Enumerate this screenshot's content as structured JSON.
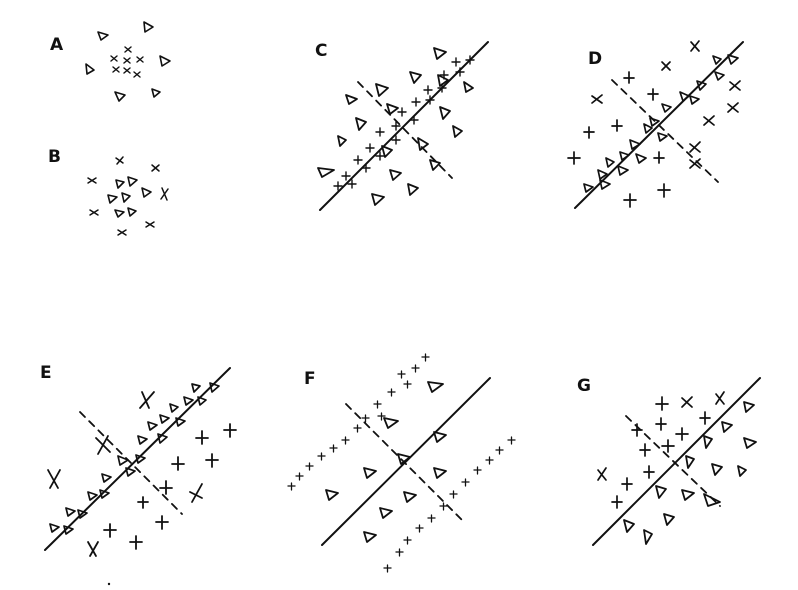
{
  "figure": {
    "panels": [
      {
        "id": "A",
        "label": "A"
      },
      {
        "id": "B",
        "label": "B"
      },
      {
        "id": "C",
        "label": "C"
      },
      {
        "id": "D",
        "label": "D"
      },
      {
        "id": "E",
        "label": "E"
      },
      {
        "id": "F",
        "label": "F"
      },
      {
        "id": "G",
        "label": "G"
      }
    ],
    "ink_color": "#111111"
  }
}
